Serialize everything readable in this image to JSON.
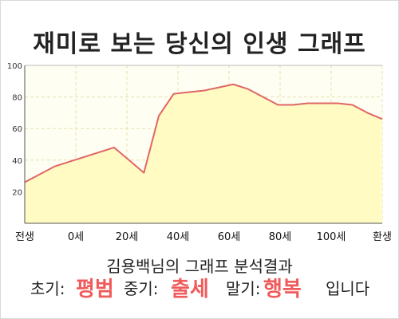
{
  "title": "재미로 보는 당신의 인생 그래프",
  "summary": "김용백님의 그래프 분석결과",
  "result": {
    "early_label": "초기:",
    "early_value": "평범",
    "mid_label": "중기:",
    "mid_value": "출세",
    "late_label": "말기:",
    "late_value": "행복",
    "suffix": "입니다"
  },
  "colors": {
    "line": "#e06666",
    "fill": "#fffbc2",
    "plot_bg": "#fffef2",
    "grid": "#e5e1b0",
    "highlight": "#ef5b5b"
  },
  "chart_data": {
    "type": "area",
    "x_tick_labels": [
      "전생",
      "0세",
      "20세",
      "40세",
      "60세",
      "80세",
      "100세",
      "환생"
    ],
    "x": [
      -10,
      0,
      20,
      25,
      30,
      35,
      40,
      50,
      55,
      60,
      65,
      70,
      75,
      80,
      85,
      90,
      95,
      100,
      105,
      110
    ],
    "y": [
      26,
      36,
      48,
      40,
      32,
      68,
      82,
      84,
      86,
      88,
      85,
      80,
      75,
      75,
      76,
      76,
      76,
      75,
      70,
      66
    ],
    "xlim": [
      -10,
      110
    ],
    "ylim": [
      0,
      100
    ],
    "y_ticks": [
      20,
      40,
      60,
      80,
      100
    ],
    "grid": true,
    "legend": "none"
  }
}
